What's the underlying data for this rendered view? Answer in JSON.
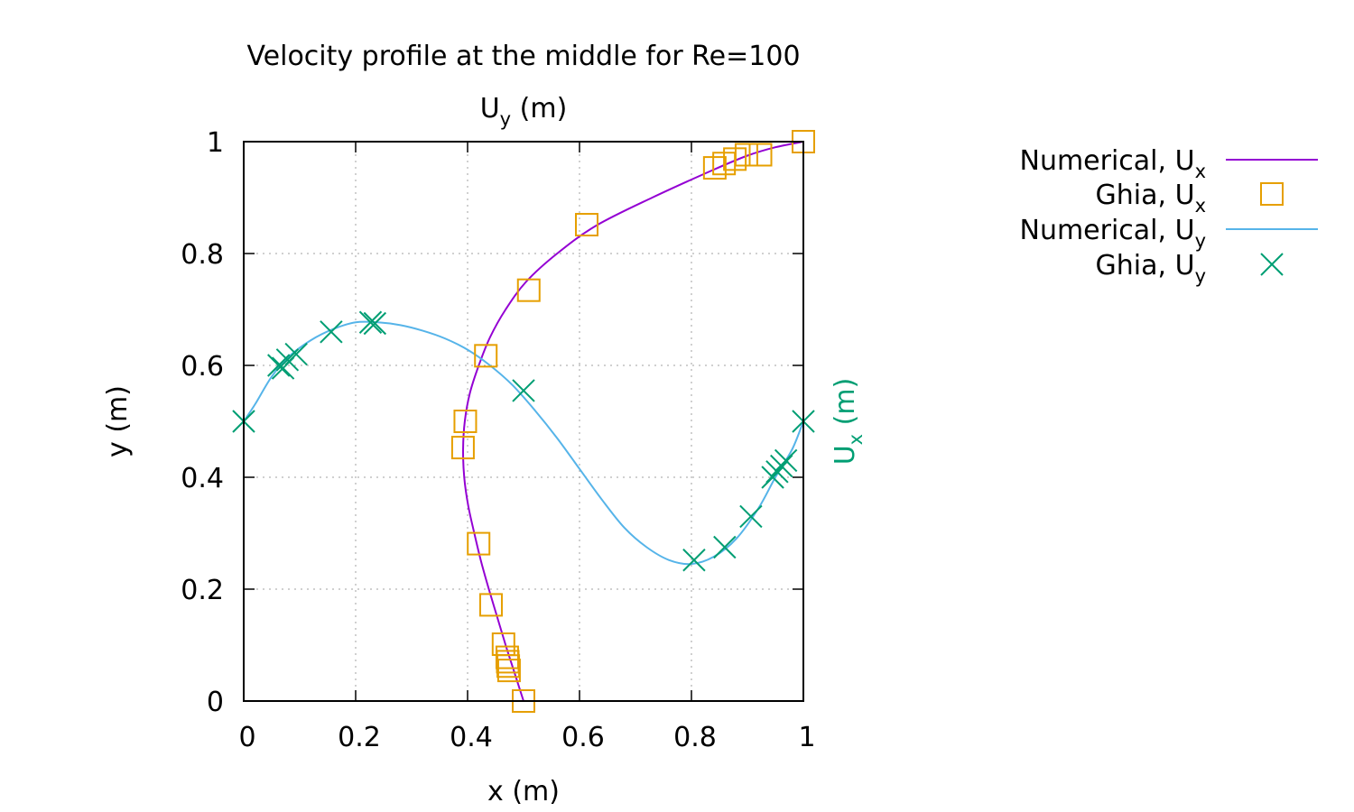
{
  "chart_data": {
    "type": "line",
    "title": "Velocity profile at the middle for Re=100",
    "xlabel": {
      "base": "x (m)"
    },
    "ylabel": {
      "base": "y (m)"
    },
    "x2label": {
      "base": "U",
      "sub": "y",
      "suffix": " (m)"
    },
    "y2label": {
      "base": "U",
      "sub": "x",
      "suffix": " (m)"
    },
    "xlim": [
      0,
      1
    ],
    "ylim": [
      0,
      1
    ],
    "xticks": [
      0,
      0.2,
      0.4,
      0.6,
      0.8,
      1
    ],
    "yticks": [
      0,
      0.2,
      0.4,
      0.6,
      0.8,
      1
    ],
    "xtick_labels": [
      "0",
      "0.2",
      "0.4",
      "0.6",
      "0.8",
      "1"
    ],
    "ytick_labels": [
      "0",
      "0.2",
      "0.4",
      "0.6",
      "0.8",
      "1"
    ],
    "grid": true,
    "legend_position": "outside-right",
    "series": [
      {
        "name": "Numerical, U",
        "name_sub": "x",
        "kind": "line",
        "color": "#9400d3",
        "points": [
          [
            0.5,
            0.0
          ],
          [
            0.484,
            0.05
          ],
          [
            0.468,
            0.1
          ],
          [
            0.453,
            0.15
          ],
          [
            0.438,
            0.2
          ],
          [
            0.424,
            0.25
          ],
          [
            0.412,
            0.3
          ],
          [
            0.401,
            0.35
          ],
          [
            0.394,
            0.4
          ],
          [
            0.392,
            0.45
          ],
          [
            0.395,
            0.5
          ],
          [
            0.404,
            0.55
          ],
          [
            0.42,
            0.6
          ],
          [
            0.44,
            0.65
          ],
          [
            0.468,
            0.7
          ],
          [
            0.505,
            0.75
          ],
          [
            0.56,
            0.8
          ],
          [
            0.63,
            0.85
          ],
          [
            0.73,
            0.9
          ],
          [
            0.84,
            0.95
          ],
          [
            0.9,
            0.975
          ],
          [
            0.95,
            0.99
          ],
          [
            1.0,
            1.0
          ]
        ]
      },
      {
        "name": "Ghia, U",
        "name_sub": "x",
        "kind": "square",
        "color": "#e69f00",
        "points": [
          [
            0.5,
            0.0
          ],
          [
            0.4741,
            0.0547
          ],
          [
            0.4727,
            0.0625
          ],
          [
            0.4718,
            0.0703
          ],
          [
            0.4709,
            0.0781
          ],
          [
            0.4642,
            0.1016
          ],
          [
            0.4419,
            0.1719
          ],
          [
            0.4197,
            0.2813
          ],
          [
            0.3918,
            0.4531
          ],
          [
            0.3959,
            0.5
          ],
          [
            0.4326,
            0.6172
          ],
          [
            0.5093,
            0.7344
          ],
          [
            0.6129,
            0.8516
          ],
          [
            0.8417,
            0.9531
          ],
          [
            0.8583,
            0.9609
          ],
          [
            0.8776,
            0.9688
          ],
          [
            0.8983,
            0.9766
          ],
          [
            0.9234,
            0.9766
          ],
          [
            1.0,
            1.0
          ]
        ]
      },
      {
        "name": "Numerical, U",
        "name_sub": "y",
        "kind": "line",
        "color": "#56b4e9",
        "points": [
          [
            0.0,
            0.5
          ],
          [
            0.02,
            0.53
          ],
          [
            0.05,
            0.58
          ],
          [
            0.08,
            0.615
          ],
          [
            0.12,
            0.645
          ],
          [
            0.16,
            0.665
          ],
          [
            0.2,
            0.677
          ],
          [
            0.24,
            0.677
          ],
          [
            0.28,
            0.672
          ],
          [
            0.32,
            0.662
          ],
          [
            0.36,
            0.648
          ],
          [
            0.4,
            0.628
          ],
          [
            0.44,
            0.6
          ],
          [
            0.48,
            0.565
          ],
          [
            0.52,
            0.52
          ],
          [
            0.56,
            0.47
          ],
          [
            0.6,
            0.415
          ],
          [
            0.64,
            0.36
          ],
          [
            0.68,
            0.31
          ],
          [
            0.72,
            0.275
          ],
          [
            0.76,
            0.252
          ],
          [
            0.8,
            0.245
          ],
          [
            0.84,
            0.258
          ],
          [
            0.88,
            0.29
          ],
          [
            0.92,
            0.345
          ],
          [
            0.95,
            0.4
          ],
          [
            0.98,
            0.45
          ],
          [
            1.0,
            0.5
          ]
        ]
      },
      {
        "name": "Ghia, U",
        "name_sub": "y",
        "kind": "cross",
        "color": "#009e73",
        "points": [
          [
            0.0,
            0.5
          ],
          [
            0.0625,
            0.6
          ],
          [
            0.0703,
            0.595
          ],
          [
            0.0781,
            0.61
          ],
          [
            0.0938,
            0.62
          ],
          [
            0.1563,
            0.66
          ],
          [
            0.2266,
            0.677
          ],
          [
            0.2344,
            0.675
          ],
          [
            0.5,
            0.555
          ],
          [
            0.8047,
            0.252
          ],
          [
            0.8594,
            0.275
          ],
          [
            0.9063,
            0.33
          ],
          [
            0.9453,
            0.4
          ],
          [
            0.9531,
            0.41
          ],
          [
            0.9609,
            0.42
          ],
          [
            0.9688,
            0.43
          ],
          [
            1.0,
            0.5
          ]
        ]
      }
    ]
  }
}
